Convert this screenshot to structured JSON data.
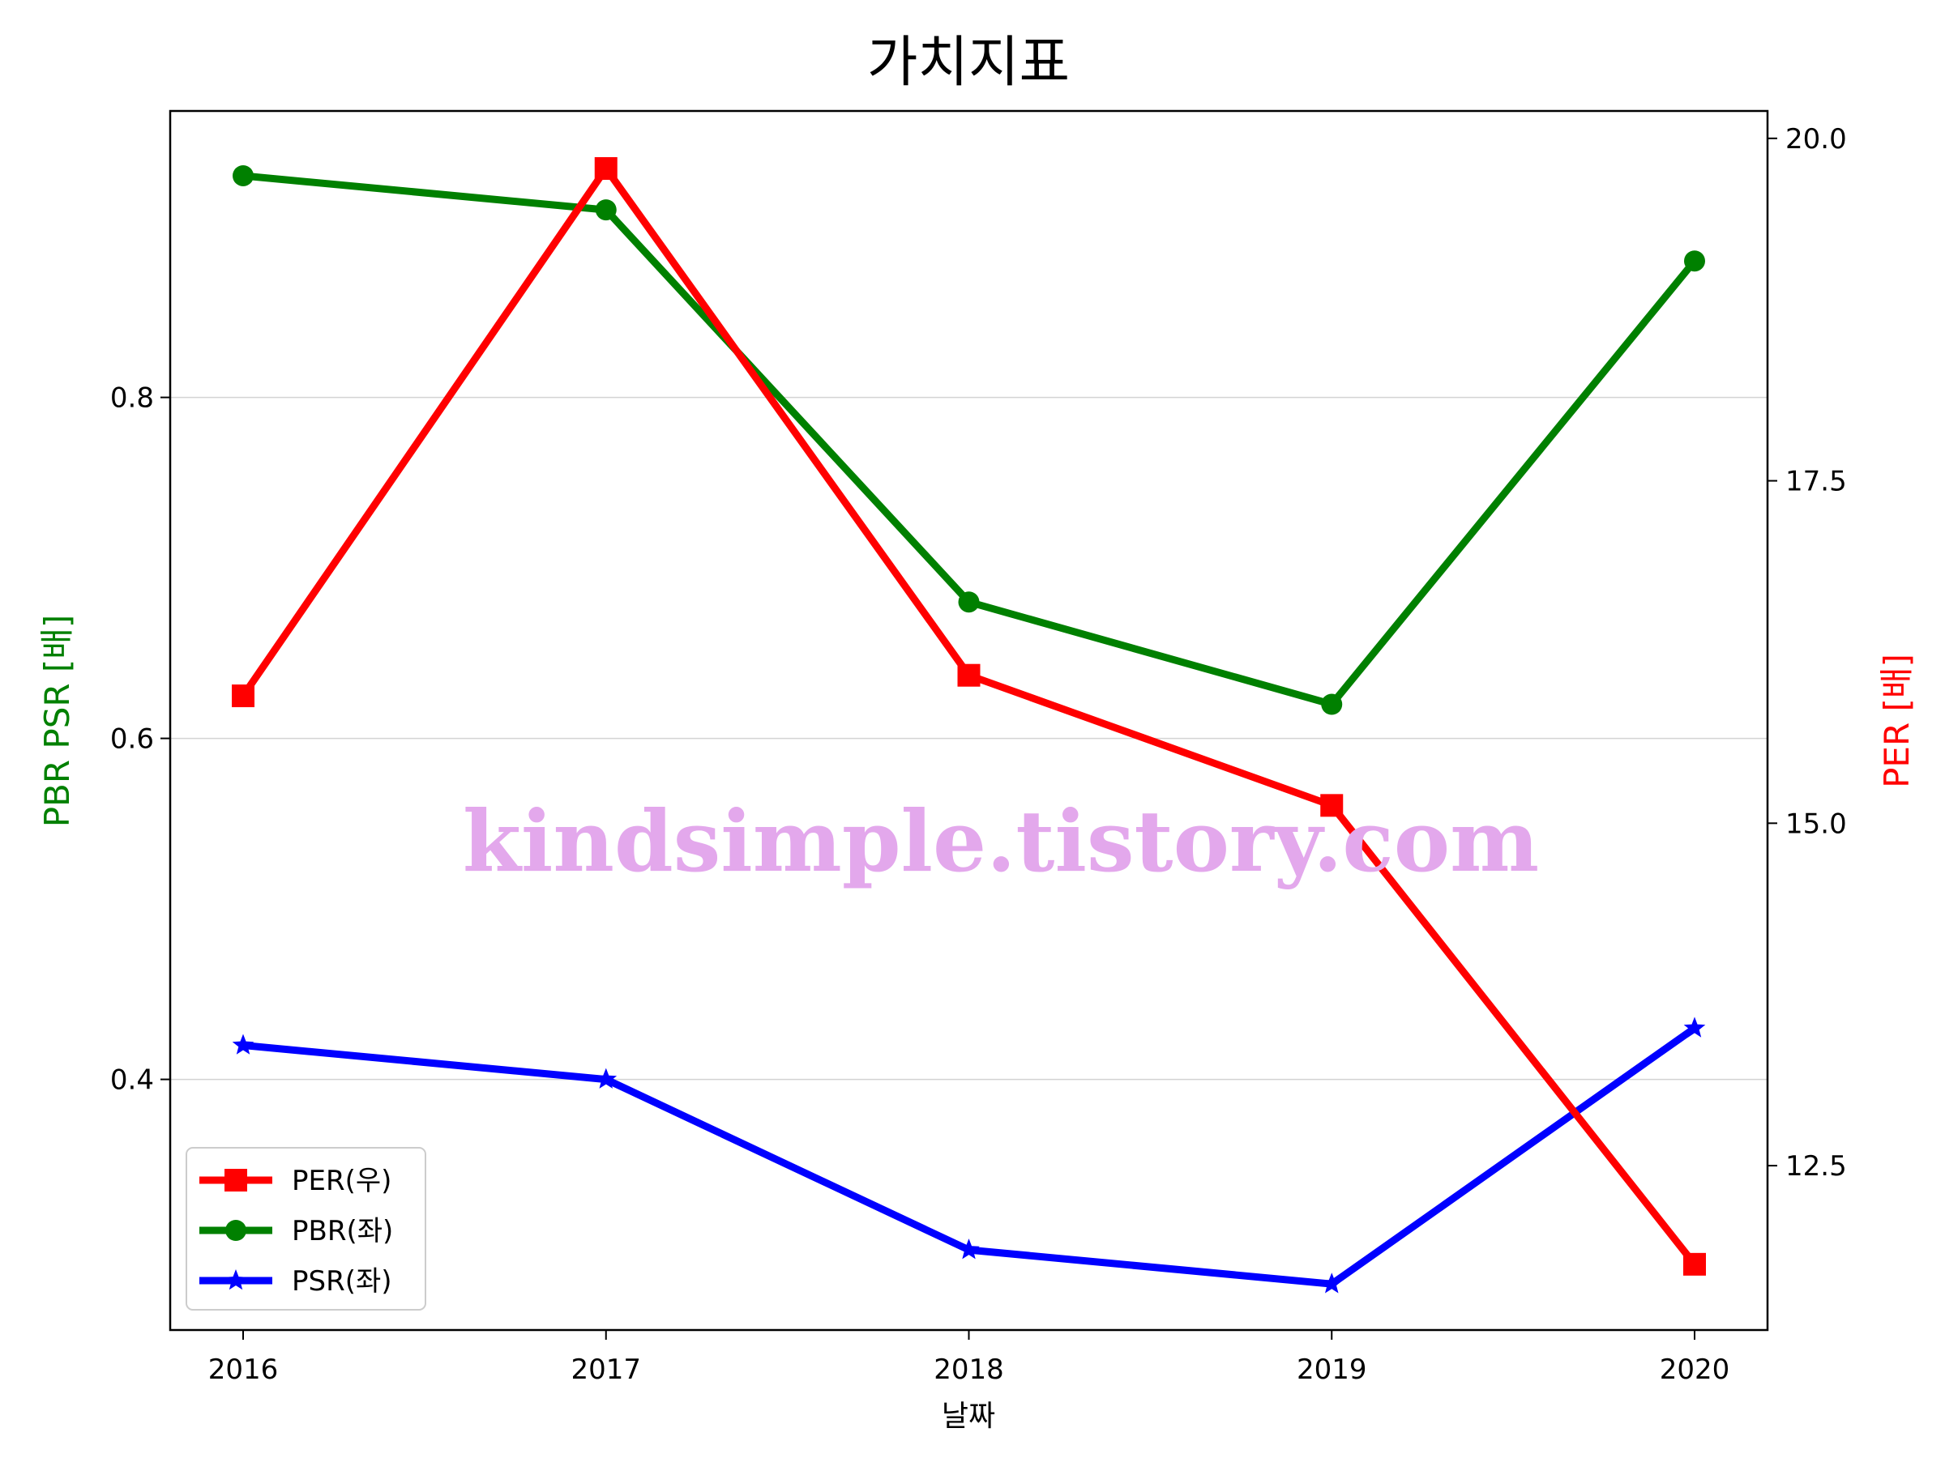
{
  "chart_data": {
    "type": "line",
    "title": "가치지표",
    "xlabel": "날짜",
    "ylabel_left": "PBR PSR [배]",
    "ylabel_right": "PER [배]",
    "categories": [
      "2016",
      "2017",
      "2018",
      "2019",
      "2020"
    ],
    "y_left": {
      "ticks": [
        "0.4",
        "0.6",
        "0.8"
      ],
      "tick_values": [
        0.4,
        0.6,
        0.8
      ],
      "ylim": [
        0.253,
        0.968
      ]
    },
    "y_right": {
      "ticks": [
        "12.5",
        "15.0",
        "17.5",
        "20.0"
      ],
      "tick_values": [
        12.5,
        15.0,
        17.5,
        20.0
      ],
      "ylim": [
        11.3,
        20.2
      ]
    },
    "series": [
      {
        "name": "PER(우)",
        "axis": "right",
        "color": "#ff0000",
        "marker": "square",
        "values": [
          15.93,
          19.78,
          16.08,
          15.13,
          11.78
        ]
      },
      {
        "name": "PBR(좌)",
        "axis": "left",
        "color": "#008000",
        "marker": "circle",
        "values": [
          0.93,
          0.91,
          0.68,
          0.62,
          0.88
        ]
      },
      {
        "name": "PSR(좌)",
        "axis": "left",
        "color": "#0000ff",
        "marker": "star",
        "values": [
          0.42,
          0.4,
          0.3,
          0.28,
          0.43
        ]
      }
    ],
    "grid": "horizontal",
    "legend_position": "lower-left",
    "watermark": "kindsimple.tistory.com"
  }
}
